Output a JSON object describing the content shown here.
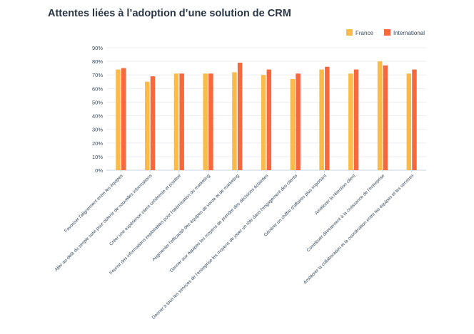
{
  "chart_data": {
    "type": "bar",
    "title": "Attentes liées à l’adoption d’une solution de CRM",
    "xlabel": "",
    "ylabel": "",
    "ylim": [
      0,
      90
    ],
    "y_ticks": [
      "0%",
      "10%",
      "20%",
      "30%",
      "40%",
      "50%",
      "60%",
      "70%",
      "80%",
      "90%"
    ],
    "legend_position": "top-right",
    "grid": true,
    "categories": [
      "Favoriser l'alignement entre les équipes",
      "Aller au-delà du simple suivi pour obtenir de nouvelles informations",
      "Créer une expérience client cohérente et positive",
      "Fournir des informations exploitables pour l'optimisation du marketing",
      "Augmenter l'efficacité des équipes de vente et de marketing",
      "Donner aux équipes les moyens de prendre des décisions éclairées",
      "Donner à tous les services de l'entreprise les moyens de jouer un rôle dans l'engagement des clients",
      "Générer un chiffre d'affaires plus important",
      "Améliorer la rétention client",
      "Contribuer directement à la croissance de l'entreprise",
      "Améliorer la collaboration et la coordination entre les équipes et les services"
    ],
    "series": [
      {
        "name": "France",
        "color": "#fbbb4a",
        "values": [
          74,
          65,
          71,
          71,
          72,
          70,
          67,
          74,
          71,
          80,
          71
        ]
      },
      {
        "name": "International",
        "color": "#f6683e",
        "values": [
          75,
          69,
          71,
          71,
          79,
          74,
          71,
          76,
          74,
          77,
          74
        ]
      }
    ]
  }
}
